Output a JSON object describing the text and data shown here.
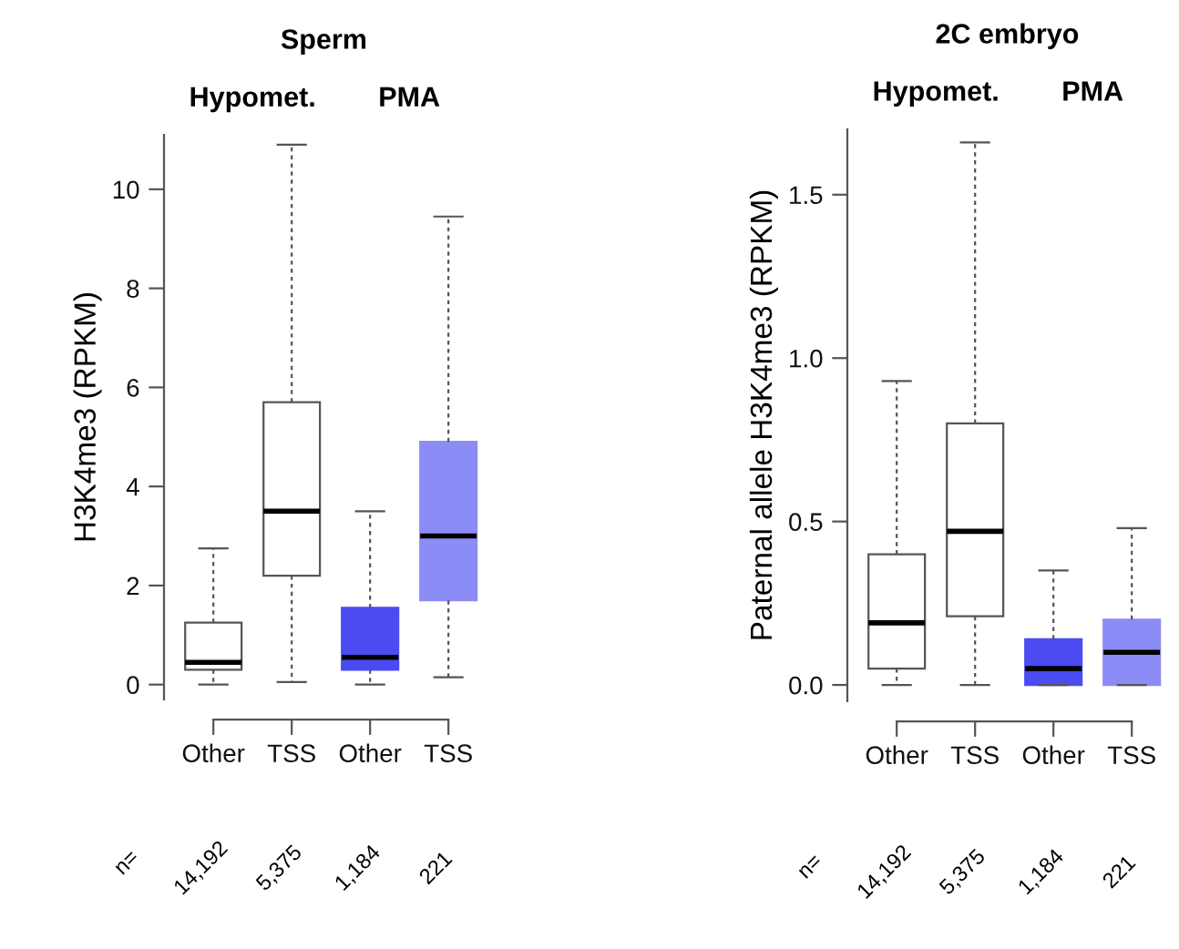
{
  "chart_data": [
    {
      "type": "box",
      "title": "Sperm",
      "ylabel": "H3K4me3 (RPKM)",
      "categories": [
        "Other",
        "TSS",
        "Other",
        "TSS"
      ],
      "colors": [
        "#ffffff",
        "#ffffff",
        "#4b4bf2",
        "#8c8cf6"
      ],
      "boxes": [
        {
          "low": 0,
          "q1": 0.3,
          "median": 0.45,
          "q3": 1.25,
          "high": 2.75
        },
        {
          "low": 0.05,
          "q1": 2.2,
          "median": 3.5,
          "q3": 5.7,
          "high": 10.9
        },
        {
          "low": 0,
          "q1": 0.3,
          "median": 0.55,
          "q3": 1.55,
          "high": 3.5
        },
        {
          "low": 0.15,
          "q1": 1.7,
          "median": 3.0,
          "q3": 4.9,
          "high": 9.45
        }
      ],
      "ylim": [
        -0.3,
        11.1
      ],
      "yticks": [
        0,
        2,
        4,
        6,
        8,
        10
      ],
      "grid": false,
      "legend": false,
      "annotations": [
        "Hypomet.",
        "PMA",
        "n=",
        "14,192",
        "5,375",
        "1,184",
        "221"
      ]
    },
    {
      "type": "box",
      "title": "2C embryo",
      "ylabel": "Paternal allele H3K4me3 (RPKM)",
      "categories": [
        "Other",
        "TSS",
        "Other",
        "TSS"
      ],
      "colors": [
        "#ffffff",
        "#ffffff",
        "#4b4bf2",
        "#8c8cf6"
      ],
      "boxes": [
        {
          "low": 0,
          "q1": 0.05,
          "median": 0.19,
          "q3": 0.4,
          "high": 0.93
        },
        {
          "low": 0,
          "q1": 0.21,
          "median": 0.47,
          "q3": 0.8,
          "high": 1.66
        },
        {
          "low": 0,
          "q1": 0,
          "median": 0.05,
          "q3": 0.14,
          "high": 0.35
        },
        {
          "low": 0,
          "q1": 0,
          "median": 0.1,
          "q3": 0.2,
          "high": 0.48
        }
      ],
      "ylim": [
        -0.05,
        1.7
      ],
      "yticks": [
        {
          "value": 0,
          "label": "0.0"
        },
        {
          "value": 0.5,
          "label": "0.5"
        },
        {
          "value": 1.0,
          "label": "1.0"
        },
        {
          "value": 1.5,
          "label": "1.5"
        }
      ],
      "grid": false,
      "legend": false,
      "annotations": [
        "Hypomet.",
        "PMA",
        "n=",
        "14,192",
        "5,375",
        "1,184",
        "221"
      ]
    }
  ]
}
